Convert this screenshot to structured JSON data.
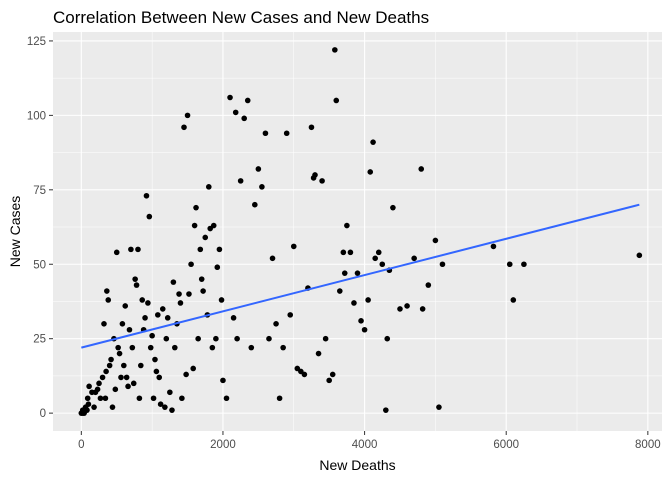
{
  "chart_data": {
    "type": "scatter",
    "title": "Correlation Between New Cases and New Deaths",
    "xlabel": "New Deaths",
    "ylabel": "New Cases",
    "xlim": [
      -400,
      8200
    ],
    "ylim": [
      -6,
      128
    ],
    "x_ticks": [
      0,
      2000,
      4000,
      6000,
      8000
    ],
    "y_ticks": [
      0,
      25,
      50,
      75,
      100,
      125
    ],
    "x_minor_ticks": [
      1000,
      3000,
      5000,
      7000
    ],
    "y_minor_ticks": [
      12.5,
      37.5,
      62.5,
      87.5,
      112.5
    ],
    "trend_line": {
      "method": "linear",
      "color": "#3366ff",
      "x": [
        0,
        7880
      ],
      "y": [
        22,
        70
      ]
    },
    "points": [
      [
        0,
        0
      ],
      [
        20,
        1
      ],
      [
        40,
        0
      ],
      [
        60,
        2
      ],
      [
        80,
        1
      ],
      [
        100,
        3
      ],
      [
        30,
        0
      ],
      [
        50,
        1
      ],
      [
        10,
        0
      ],
      [
        90,
        5
      ],
      [
        110,
        9
      ],
      [
        150,
        7
      ],
      [
        180,
        2
      ],
      [
        200,
        7
      ],
      [
        230,
        8
      ],
      [
        250,
        10
      ],
      [
        270,
        5
      ],
      [
        300,
        12
      ],
      [
        320,
        30
      ],
      [
        340,
        5
      ],
      [
        350,
        14
      ],
      [
        360,
        41
      ],
      [
        380,
        38
      ],
      [
        400,
        16
      ],
      [
        420,
        18
      ],
      [
        440,
        2
      ],
      [
        460,
        25
      ],
      [
        480,
        8
      ],
      [
        500,
        54
      ],
      [
        520,
        22
      ],
      [
        540,
        20
      ],
      [
        560,
        12
      ],
      [
        580,
        30
      ],
      [
        600,
        16
      ],
      [
        620,
        36
      ],
      [
        640,
        12
      ],
      [
        660,
        9
      ],
      [
        680,
        28
      ],
      [
        700,
        55
      ],
      [
        720,
        22
      ],
      [
        740,
        10
      ],
      [
        760,
        45
      ],
      [
        780,
        43
      ],
      [
        800,
        55
      ],
      [
        820,
        5
      ],
      [
        840,
        16
      ],
      [
        860,
        38
      ],
      [
        880,
        28
      ],
      [
        900,
        32
      ],
      [
        920,
        73
      ],
      [
        940,
        37
      ],
      [
        960,
        66
      ],
      [
        980,
        22
      ],
      [
        1000,
        26
      ],
      [
        1020,
        5
      ],
      [
        1040,
        18
      ],
      [
        1060,
        14
      ],
      [
        1080,
        33
      ],
      [
        1100,
        12
      ],
      [
        1120,
        3
      ],
      [
        1150,
        35
      ],
      [
        1180,
        2
      ],
      [
        1200,
        25
      ],
      [
        1220,
        32
      ],
      [
        1250,
        7
      ],
      [
        1280,
        1
      ],
      [
        1300,
        44
      ],
      [
        1320,
        22
      ],
      [
        1350,
        30
      ],
      [
        1380,
        40
      ],
      [
        1400,
        37
      ],
      [
        1420,
        5
      ],
      [
        1450,
        96
      ],
      [
        1480,
        13
      ],
      [
        1500,
        100
      ],
      [
        1520,
        40
      ],
      [
        1550,
        50
      ],
      [
        1580,
        15
      ],
      [
        1600,
        63
      ],
      [
        1620,
        69
      ],
      [
        1650,
        25
      ],
      [
        1680,
        55
      ],
      [
        1700,
        45
      ],
      [
        1720,
        41
      ],
      [
        1750,
        59
      ],
      [
        1780,
        33
      ],
      [
        1800,
        76
      ],
      [
        1820,
        62
      ],
      [
        1850,
        22
      ],
      [
        1870,
        63
      ],
      [
        1900,
        25
      ],
      [
        1920,
        49
      ],
      [
        1950,
        55
      ],
      [
        1980,
        38
      ],
      [
        2000,
        11
      ],
      [
        2050,
        5
      ],
      [
        2100,
        106
      ],
      [
        2150,
        32
      ],
      [
        2180,
        101
      ],
      [
        2200,
        25
      ],
      [
        2250,
        78
      ],
      [
        2300,
        99
      ],
      [
        2350,
        105
      ],
      [
        2400,
        22
      ],
      [
        2450,
        70
      ],
      [
        2500,
        82
      ],
      [
        2550,
        76
      ],
      [
        2600,
        94
      ],
      [
        2650,
        25
      ],
      [
        2700,
        52
      ],
      [
        2750,
        30
      ],
      [
        2800,
        5
      ],
      [
        2850,
        22
      ],
      [
        2900,
        94
      ],
      [
        2950,
        33
      ],
      [
        3000,
        56
      ],
      [
        3050,
        15
      ],
      [
        3100,
        14
      ],
      [
        3150,
        13
      ],
      [
        3200,
        42
      ],
      [
        3250,
        96
      ],
      [
        3280,
        79
      ],
      [
        3300,
        80
      ],
      [
        3350,
        20
      ],
      [
        3400,
        78
      ],
      [
        3450,
        25
      ],
      [
        3500,
        11
      ],
      [
        3550,
        13
      ],
      [
        3580,
        122
      ],
      [
        3600,
        105
      ],
      [
        3650,
        41
      ],
      [
        3700,
        54
      ],
      [
        3720,
        47
      ],
      [
        3750,
        63
      ],
      [
        3800,
        54
      ],
      [
        3850,
        37
      ],
      [
        3900,
        47
      ],
      [
        3950,
        31
      ],
      [
        4000,
        28
      ],
      [
        4050,
        38
      ],
      [
        4080,
        81
      ],
      [
        4120,
        91
      ],
      [
        4150,
        52
      ],
      [
        4200,
        54
      ],
      [
        4250,
        50
      ],
      [
        4300,
        1
      ],
      [
        4320,
        25
      ],
      [
        4350,
        48
      ],
      [
        4400,
        69
      ],
      [
        4500,
        35
      ],
      [
        4600,
        36
      ],
      [
        4700,
        52
      ],
      [
        4800,
        82
      ],
      [
        4820,
        35
      ],
      [
        4900,
        43
      ],
      [
        5000,
        58
      ],
      [
        5050,
        2
      ],
      [
        5100,
        50
      ],
      [
        5820,
        56
      ],
      [
        6050,
        50
      ],
      [
        6100,
        38
      ],
      [
        6250,
        50
      ],
      [
        7880,
        53
      ]
    ]
  }
}
